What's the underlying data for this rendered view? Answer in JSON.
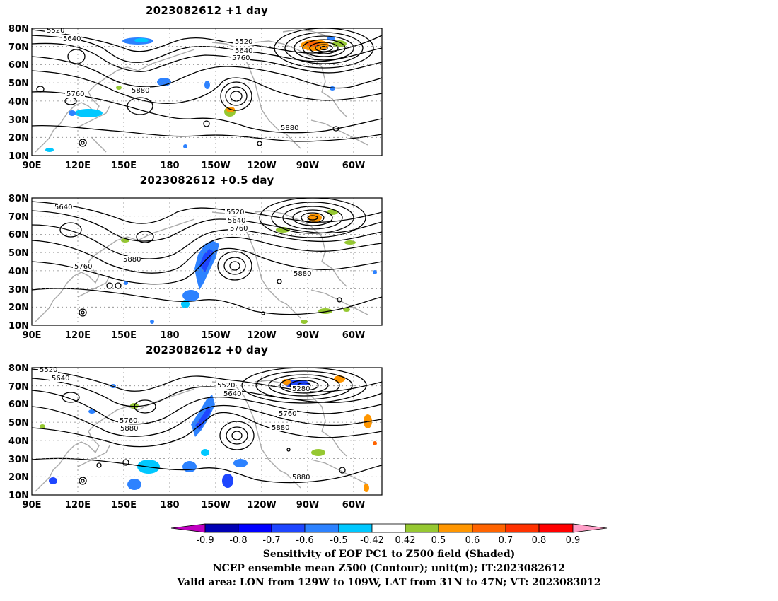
{
  "panels": [
    {
      "title": "2023082612 +1 day",
      "contour_labels": [
        "5520",
        "5640",
        "5520",
        "5640",
        "5760",
        "5760",
        "5880",
        "5880"
      ]
    },
    {
      "title": "2023082612 +0.5 day",
      "contour_labels": [
        "5640",
        "5520",
        "5640",
        "5760",
        "5760",
        "5880",
        "5880"
      ]
    },
    {
      "title": "2023082612 +0 day",
      "contour_labels": [
        "5520",
        "5640",
        "5520",
        "5640",
        "5280",
        "5760",
        "5760",
        "5880",
        "5880",
        "5880"
      ]
    }
  ],
  "axes": {
    "lat_labels": [
      "80N",
      "70N",
      "60N",
      "50N",
      "40N",
      "30N",
      "20N",
      "10N"
    ],
    "lon_labels": [
      "90E",
      "120E",
      "150E",
      "180",
      "150W",
      "120W",
      "90W",
      "60W"
    ]
  },
  "colorbar": {
    "labels": [
      "-0.9",
      "-0.8",
      "-0.7",
      "-0.6",
      "-0.5",
      "-0.42",
      "0.42",
      "0.5",
      "0.6",
      "0.7",
      "0.8",
      "0.9"
    ],
    "colors": [
      "#c000c0",
      "#0000b4",
      "#0000ff",
      "#1e46ff",
      "#2d82ff",
      "#00c8ff",
      "#ffffff",
      "#96c832",
      "#ff9600",
      "#ff6400",
      "#ff3200",
      "#ff0000",
      "#ffa0c8"
    ]
  },
  "footer": {
    "line1": "Sensitivity of EOF PC1 to Z500 field (Shaded)",
    "line2": "NCEP ensemble mean Z500 (Contour); unit(m); IT:2023082612",
    "line3": "Valid area: LON from 129W to 109W, LAT from 31N to 47N; VT: 2023083012"
  }
}
